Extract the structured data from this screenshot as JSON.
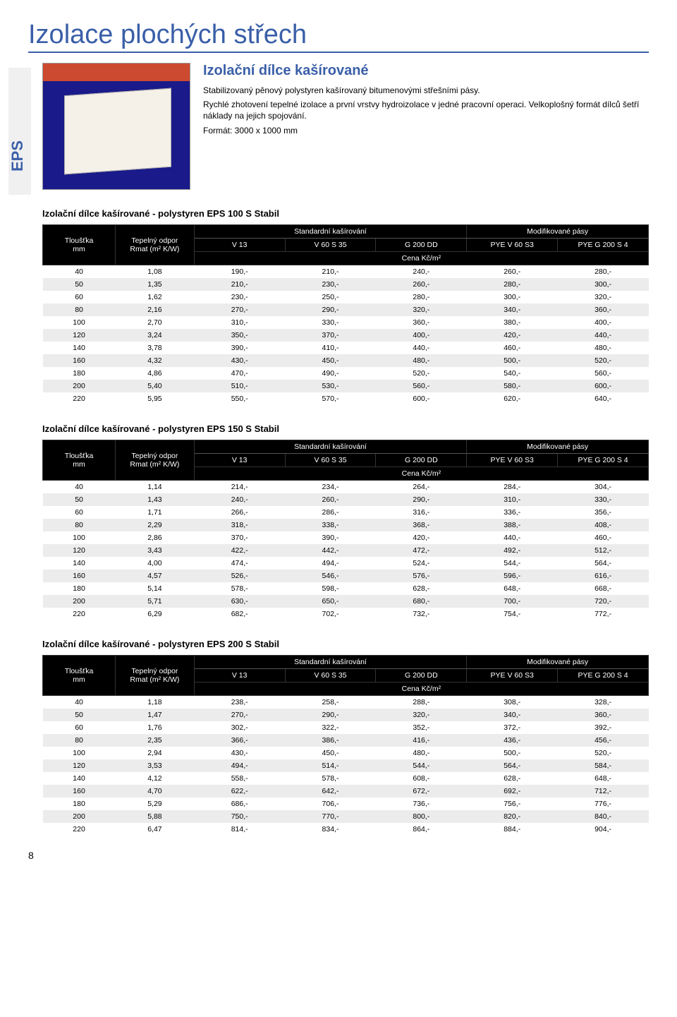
{
  "page_title": "Izolace plochých střech",
  "eps_label": "EPS",
  "intro": {
    "heading": "Izolační dílce kašírované",
    "p1": "Stabilizovaný pěnový polystyren kašírovaný bitumenovými střešními pásy.",
    "p2": "Rychlé zhotovení tepelné izolace a první vrstvy hydroizolace v jedné pracovní operaci. Velkoplošný formát dílců šetří náklady na jejich spojování.",
    "p3": "Formát: 3000 x 1000 mm"
  },
  "headers": {
    "tloustka": "Tloušťka",
    "tloustka_unit": "mm",
    "tepelny_odpor": "Tepelný odpor",
    "rmat": "Rmat (m² K/W)",
    "std_group": "Standardní kašírování",
    "mod_group": "Modifikované pásy",
    "v13": "V 13",
    "v60s35": "V 60 S 35",
    "g200dd": "G 200 DD",
    "pyev60s3": "PYE V 60 S3",
    "pyeg200s4": "PYE G 200 S 4",
    "cena": "Cena Kč/m²"
  },
  "tables": [
    {
      "title": "Izolační dílce kašírované - polystyren EPS 100 S Stabil",
      "rows": [
        [
          "40",
          "1,08",
          "190,-",
          "210,-",
          "240,-",
          "260,-",
          "280,-"
        ],
        [
          "50",
          "1,35",
          "210,-",
          "230,-",
          "260,-",
          "280,-",
          "300,-"
        ],
        [
          "60",
          "1,62",
          "230,-",
          "250,-",
          "280,-",
          "300,-",
          "320,-"
        ],
        [
          "80",
          "2,16",
          "270,-",
          "290,-",
          "320,-",
          "340,-",
          "360,-"
        ],
        [
          "100",
          "2,70",
          "310,-",
          "330,-",
          "360,-",
          "380,-",
          "400,-"
        ],
        [
          "120",
          "3,24",
          "350,-",
          "370,-",
          "400,-",
          "420,-",
          "440,-"
        ],
        [
          "140",
          "3,78",
          "390,-",
          "410,-",
          "440,-",
          "460,-",
          "480,-"
        ],
        [
          "160",
          "4,32",
          "430,-",
          "450,-",
          "480,-",
          "500,-",
          "520,-"
        ],
        [
          "180",
          "4,86",
          "470,-",
          "490,-",
          "520,-",
          "540,-",
          "560,-"
        ],
        [
          "200",
          "5,40",
          "510,-",
          "530,-",
          "560,-",
          "580,-",
          "600,-"
        ],
        [
          "220",
          "5,95",
          "550,-",
          "570,-",
          "600,-",
          "620,-",
          "640,-"
        ]
      ]
    },
    {
      "title": "Izolační dílce kašírované - polystyren EPS 150 S Stabil",
      "rows": [
        [
          "40",
          "1,14",
          "214,-",
          "234,-",
          "264,-",
          "284,-",
          "304,-"
        ],
        [
          "50",
          "1,43",
          "240,-",
          "260,-",
          "290,-",
          "310,-",
          "330,-"
        ],
        [
          "60",
          "1,71",
          "266,-",
          "286,-",
          "316,-",
          "336,-",
          "356,-"
        ],
        [
          "80",
          "2,29",
          "318,-",
          "338,-",
          "368,-",
          "388,-",
          "408,-"
        ],
        [
          "100",
          "2,86",
          "370,-",
          "390,-",
          "420,-",
          "440,-",
          "460,-"
        ],
        [
          "120",
          "3,43",
          "422,-",
          "442,-",
          "472,-",
          "492,-",
          "512,-"
        ],
        [
          "140",
          "4,00",
          "474,-",
          "494,-",
          "524,-",
          "544,-",
          "564,-"
        ],
        [
          "160",
          "4,57",
          "526,-",
          "546,-",
          "576,-",
          "596,-",
          "616,-"
        ],
        [
          "180",
          "5,14",
          "578,-",
          "598,-",
          "628,-",
          "648,-",
          "668,-"
        ],
        [
          "200",
          "5,71",
          "630,-",
          "650,-",
          "680,-",
          "700,-",
          "720,-"
        ],
        [
          "220",
          "6,29",
          "682,-",
          "702,-",
          "732,-",
          "754,-",
          "772,-"
        ]
      ]
    },
    {
      "title": "Izolační dílce kašírované - polystyren EPS 200 S Stabil",
      "rows": [
        [
          "40",
          "1,18",
          "238,-",
          "258,-",
          "288,-",
          "308,-",
          "328,-"
        ],
        [
          "50",
          "1,47",
          "270,-",
          "290,-",
          "320,-",
          "340,-",
          "360,-"
        ],
        [
          "60",
          "1,76",
          "302,-",
          "322,-",
          "352,-",
          "372,-",
          "392,-"
        ],
        [
          "80",
          "2,35",
          "366,-",
          "386,-",
          "416,-",
          "436,-",
          "456,-"
        ],
        [
          "100",
          "2,94",
          "430,-",
          "450,-",
          "480,-",
          "500,-",
          "520,-"
        ],
        [
          "120",
          "3,53",
          "494,-",
          "514,-",
          "544,-",
          "564,-",
          "584,-"
        ],
        [
          "140",
          "4,12",
          "558,-",
          "578,-",
          "608,-",
          "628,-",
          "648,-"
        ],
        [
          "160",
          "4,70",
          "622,-",
          "642,-",
          "672,-",
          "692,-",
          "712,-"
        ],
        [
          "180",
          "5,29",
          "686,-",
          "706,-",
          "736,-",
          "756,-",
          "776,-"
        ],
        [
          "200",
          "5,88",
          "750,-",
          "770,-",
          "800,-",
          "820,-",
          "840,-"
        ],
        [
          "220",
          "6,47",
          "814,-",
          "834,-",
          "864,-",
          "884,-",
          "904,-"
        ]
      ]
    }
  ],
  "page_number": "8",
  "colors": {
    "brand_blue": "#3a5fa8",
    "header_bg": "#000000",
    "header_fg": "#ffffff",
    "row_alt": "#ececec",
    "eps_bg": "#f0f0f0"
  }
}
